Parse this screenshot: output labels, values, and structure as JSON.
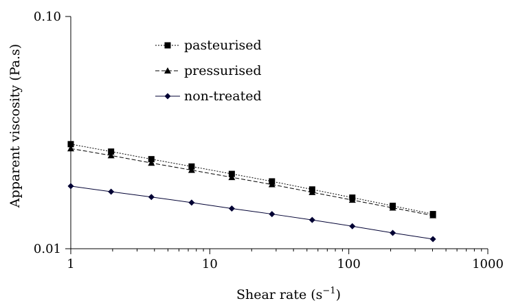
{
  "chart_data": {
    "type": "line",
    "xlabel": "Shear rate (s",
    "xlabel_sup": "−1",
    "xlabel_end": ")",
    "ylabel": "Apparent viscosity (Pa.s)",
    "x_scale": "log",
    "y_scale": "log",
    "xlim": [
      1,
      1000
    ],
    "ylim": [
      0.01,
      0.1
    ],
    "x_ticks": [
      1,
      10,
      100,
      1000
    ],
    "x_tick_labels": [
      "1",
      "10",
      "100",
      "1000"
    ],
    "y_ticks": [
      0.01,
      0.1
    ],
    "y_tick_labels": [
      "0.01",
      "0.10"
    ],
    "grid": false,
    "legend_position": "top-center",
    "x": [
      1,
      1.95,
      3.8,
      7.4,
      14.4,
      28,
      54.5,
      106,
      207,
      403
    ],
    "series": [
      {
        "name": "pasteurised",
        "marker": "square",
        "line_style": "dotted",
        "color": "#000000",
        "values": [
          0.0282,
          0.0262,
          0.0243,
          0.0226,
          0.021,
          0.0195,
          0.018,
          0.0166,
          0.0153,
          0.0141
        ]
      },
      {
        "name": "pressurised",
        "marker": "triangle",
        "line_style": "dashed",
        "color": "#000000",
        "values": [
          0.027,
          0.0252,
          0.0234,
          0.0218,
          0.0203,
          0.0189,
          0.0175,
          0.0162,
          0.015,
          0.0139
        ]
      },
      {
        "name": "non-treated",
        "marker": "diamond",
        "line_style": "solid",
        "color": "#000033",
        "values": [
          0.0186,
          0.0176,
          0.0167,
          0.0158,
          0.0149,
          0.0141,
          0.0133,
          0.0125,
          0.0117,
          0.011
        ]
      }
    ]
  }
}
